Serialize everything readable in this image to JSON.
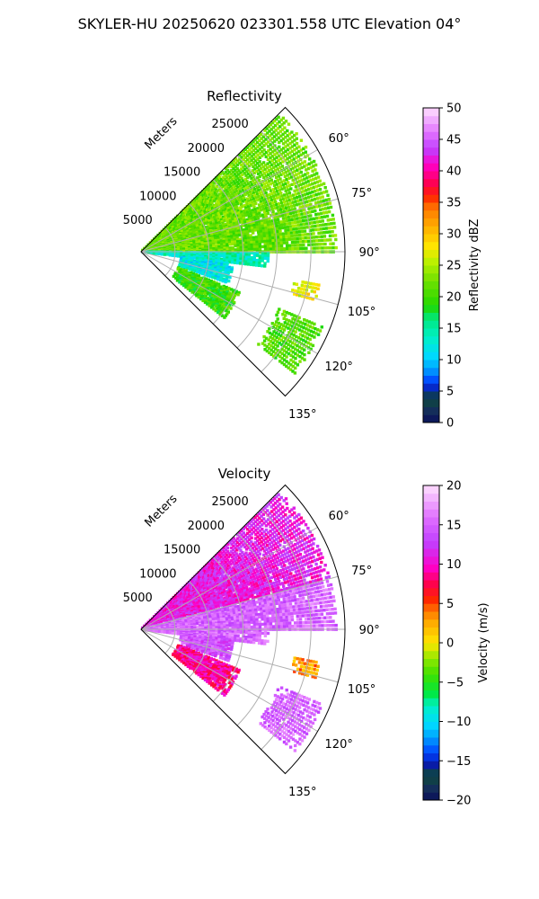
{
  "figure_title": "SKYLER-HU  20250620  023301.558 UTC Elevation 04°",
  "chart_data": [
    {
      "type": "heatmap",
      "subtype": "polar-sector",
      "title": "Reflectivity",
      "range_label": "Meters",
      "range_ticks": [
        5000,
        10000,
        15000,
        20000,
        25000
      ],
      "range_tick_labels": [
        "5000",
        "10000",
        "15000",
        "20000",
        "25000"
      ],
      "max_range_m": 30000,
      "azimuth_range_deg": [
        45,
        135
      ],
      "azimuth_ticks": [
        60,
        75,
        90,
        105,
        120,
        135
      ],
      "azimuth_tick_labels": [
        "60°",
        "75°",
        "90°",
        "105°",
        "120°",
        "135°"
      ],
      "grid": true,
      "colorbar": {
        "label": "Reflectivity dBZ",
        "min": 0,
        "max": 50,
        "ticks": [
          0,
          5,
          10,
          15,
          20,
          25,
          30,
          35,
          40,
          45,
          50
        ],
        "tick_labels": [
          "0",
          "5",
          "10",
          "15",
          "20",
          "25",
          "30",
          "35",
          "40",
          "45",
          "50"
        ]
      },
      "echo_regions": [
        {
          "az": [
            45,
            90
          ],
          "r_m": [
            0,
            29000
          ],
          "dominant_value": 22
        },
        {
          "az": [
            90,
            97
          ],
          "r_m": [
            0,
            19000
          ],
          "dominant_value": 14
        },
        {
          "az": [
            97,
            110
          ],
          "r_m": [
            6000,
            14000
          ],
          "dominant_value": 12
        },
        {
          "az": [
            112,
            128
          ],
          "r_m": [
            6000,
            16000
          ],
          "dominant_value": 20
        },
        {
          "az": [
            112,
            128
          ],
          "r_m": [
            22000,
            29000
          ],
          "dominant_value": 21
        },
        {
          "az": [
            100,
            106
          ],
          "r_m": [
            23000,
            27000
          ],
          "dominant_value": 27
        }
      ]
    },
    {
      "type": "heatmap",
      "subtype": "polar-sector",
      "title": "Velocity",
      "range_label": "Meters",
      "range_ticks": [
        5000,
        10000,
        15000,
        20000,
        25000
      ],
      "range_tick_labels": [
        "5000",
        "10000",
        "15000",
        "20000",
        "25000"
      ],
      "max_range_m": 30000,
      "azimuth_range_deg": [
        45,
        135
      ],
      "azimuth_ticks": [
        60,
        75,
        90,
        105,
        120,
        135
      ],
      "azimuth_tick_labels": [
        "60°",
        "75°",
        "90°",
        "105°",
        "120°",
        "135°"
      ],
      "grid": true,
      "colorbar": {
        "label": "Velocity (m/s)",
        "min": -20,
        "max": 20,
        "ticks": [
          -20,
          -15,
          -10,
          -5,
          0,
          5,
          10,
          15,
          20
        ],
        "tick_labels": [
          "−20",
          "−15",
          "−10",
          "−5",
          "0",
          "5",
          "10",
          "15",
          "20"
        ]
      },
      "echo_regions": [
        {
          "az": [
            45,
            75
          ],
          "r_m": [
            0,
            29000
          ],
          "dominant_value": 11
        },
        {
          "az": [
            75,
            90
          ],
          "r_m": [
            0,
            29000
          ],
          "dominant_value": 15
        },
        {
          "az": [
            90,
            97
          ],
          "r_m": [
            0,
            19000
          ],
          "dominant_value": 15
        },
        {
          "az": [
            97,
            110
          ],
          "r_m": [
            6000,
            14000
          ],
          "dominant_value": 14
        },
        {
          "az": [
            112,
            128
          ],
          "r_m": [
            6000,
            16000
          ],
          "dominant_value": 9
        },
        {
          "az": [
            112,
            128
          ],
          "r_m": [
            22000,
            29000
          ],
          "dominant_value": 15
        },
        {
          "az": [
            100,
            106
          ],
          "r_m": [
            23000,
            27000
          ],
          "dominant_value": 3
        }
      ]
    }
  ]
}
